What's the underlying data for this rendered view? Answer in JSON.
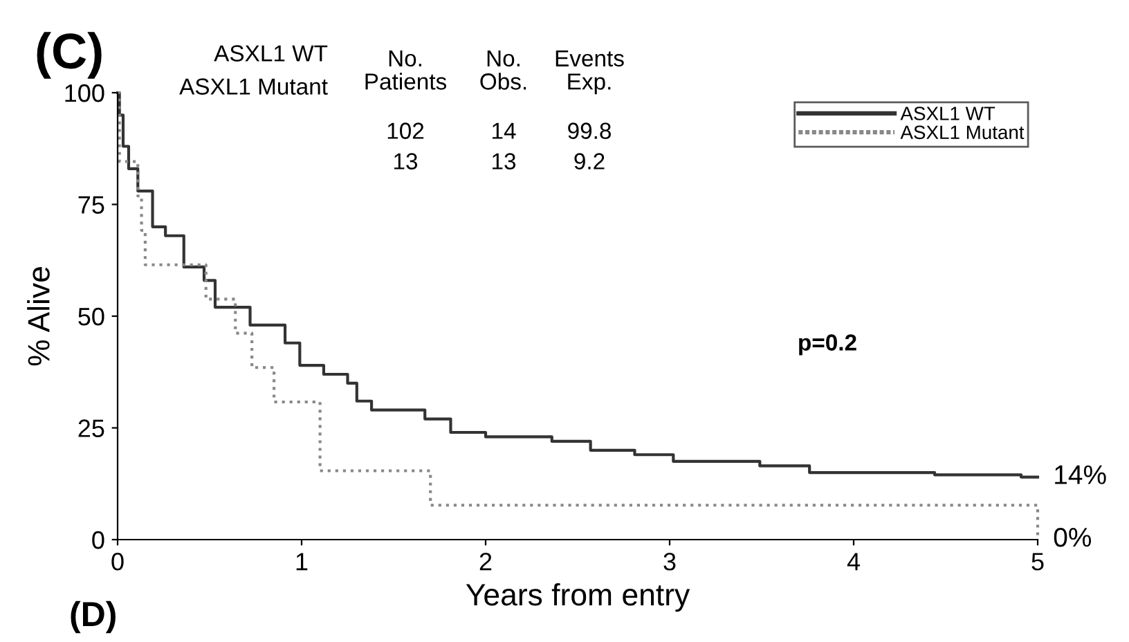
{
  "chart_data": {
    "type": "step",
    "title": "(C)",
    "xlabel": "Years from entry",
    "ylabel": "% Alive",
    "xlim": [
      0,
      5
    ],
    "ylim": [
      0,
      100
    ],
    "xticks": [
      0,
      1,
      2,
      3,
      4,
      5
    ],
    "yticks": [
      0,
      25,
      50,
      75,
      100
    ],
    "grid": false,
    "legend": "top right",
    "marker": "none",
    "series": [
      {
        "name": "ASXL1 WT",
        "color": "#333333",
        "line_style": "solid",
        "x": [
          0,
          0.01,
          0.03,
          0.06,
          0.11,
          0.19,
          0.26,
          0.36,
          0.47,
          0.53,
          0.72,
          0.91,
          0.99,
          1.12,
          1.25,
          1.3,
          1.38,
          1.67,
          1.81,
          2.0,
          2.36,
          2.57,
          2.81,
          3.02,
          3.49,
          3.76,
          4.44,
          4.91,
          5.0
        ],
        "values": [
          100,
          95,
          88,
          83,
          78,
          70,
          68,
          61,
          58,
          52,
          48,
          44,
          39,
          37,
          35,
          31,
          29,
          27,
          24,
          23,
          22,
          20,
          19,
          17.5,
          16.5,
          15,
          14.5,
          14,
          14
        ]
      },
      {
        "name": "ASXL1 Mutant",
        "color": "#888888",
        "line_style": "dotted",
        "x": [
          0,
          0.01,
          0.11,
          0.13,
          0.15,
          0.48,
          0.64,
          0.73,
          0.85,
          1.1,
          1.7,
          5.0
        ],
        "values": [
          100,
          84.6,
          76.9,
          69.2,
          61.5,
          53.8,
          46.2,
          38.5,
          30.8,
          15.4,
          7.7,
          0
        ]
      }
    ],
    "annotations": [
      "ASXL1 WT",
      "ASXL1 Mutant",
      "No.\nPatients",
      "No.\nObs.",
      "Events\nExp.",
      "102",
      "14",
      "99.8",
      "13",
      "13",
      "9.2",
      "p=0.2",
      {
        "text": "14%",
        "x": 5,
        "y": 14
      },
      {
        "text": "0%",
        "x": 5,
        "y": 0
      },
      "(D)"
    ]
  }
}
